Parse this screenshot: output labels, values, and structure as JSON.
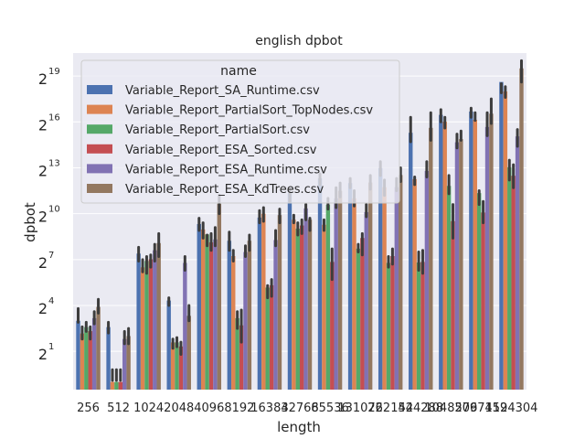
{
  "chart_data": {
    "type": "bar",
    "title": "english dpbot",
    "xlabel": "length",
    "ylabel": "dpbot",
    "yscale": "log2",
    "ylim_log2": [
      -1.5,
      20.5
    ],
    "yticks": [
      {
        "base": "2",
        "exp": "1",
        "value": 1
      },
      {
        "base": "2",
        "exp": "4",
        "value": 4
      },
      {
        "base": "2",
        "exp": "7",
        "value": 7
      },
      {
        "base": "2",
        "exp": "10",
        "value": 10
      },
      {
        "base": "2",
        "exp": "13",
        "value": 13
      },
      {
        "base": "2",
        "exp": "16",
        "value": 16
      },
      {
        "base": "2",
        "exp": "19",
        "value": 19
      }
    ],
    "categories": [
      "256",
      "512",
      "1024",
      "2048",
      "4096",
      "8192",
      "16384",
      "32768",
      "65536",
      "131072",
      "262144",
      "524288",
      "1048576",
      "2097152",
      "4194304"
    ],
    "category_tick_labels": [
      "256",
      "512",
      "1024",
      "2048",
      "4096",
      "8192",
      "16384",
      "32768",
      "65536",
      "131072",
      "262144",
      "524288",
      "1048576",
      "2097152",
      "4194304"
    ],
    "legend": {
      "title": "name",
      "position": "upper-left"
    },
    "grid": true,
    "series": [
      {
        "name": "Variable_Report_SA_Runtime.csv",
        "color": "#4c72b0",
        "values": [
          8,
          6,
          168,
          20,
          640,
          300,
          860,
          2560,
          5100,
          4100,
          8100,
          40000,
          90000,
          105000,
          400000
        ],
        "ci_log2": [
          [
            2.9,
            3.8
          ],
          [
            2.2,
            2.9
          ],
          [
            6.9,
            7.8
          ],
          [
            4.0,
            4.5
          ],
          [
            8.9,
            9.7
          ],
          [
            7.6,
            8.8
          ],
          [
            9.4,
            10.2
          ],
          [
            10.8,
            11.6
          ],
          [
            11.9,
            12.6
          ],
          [
            11.7,
            12.3
          ],
          [
            12.5,
            13.4
          ],
          [
            14.7,
            16.3
          ],
          [
            16.0,
            16.8
          ],
          [
            16.3,
            16.9
          ],
          [
            17.9,
            18.5
          ]
        ]
      },
      {
        "name": "Variable_Report_PartialSort_TopNodes.csv",
        "color": "#dd8452",
        "values": [
          4.5,
          0.5,
          90,
          3,
          500,
          150,
          1020,
          780,
          620,
          2048,
          3400,
          4900,
          66000,
          72000,
          260000
        ],
        "ci_log2": [
          [
            1.8,
            2.6
          ],
          [
            -0.2,
            -0.9
          ],
          [
            6.2,
            7.0
          ],
          [
            1.2,
            1.8
          ],
          [
            8.4,
            9.4
          ],
          [
            6.9,
            7.6
          ],
          [
            9.5,
            10.4
          ],
          [
            9.4,
            9.9
          ],
          [
            8.9,
            9.6
          ],
          [
            10.5,
            11.5
          ],
          [
            11.2,
            12.2
          ],
          [
            11.9,
            12.4
          ],
          [
            15.6,
            16.3
          ],
          [
            16.1,
            16.6
          ],
          [
            17.6,
            18.3
          ]
        ]
      },
      {
        "name": "Variable_Report_PartialSort.csv",
        "color": "#55a868",
        "values": [
          6,
          0.5,
          120,
          3,
          400,
          9,
          36,
          520,
          1540,
          210,
          110,
          112,
          3600,
          2600,
          8400
        ],
        "ci_log2": [
          [
            2.3,
            2.9
          ],
          [
            -0.2,
            -0.9
          ],
          [
            6.1,
            7.2
          ],
          [
            1.3,
            1.9
          ],
          [
            7.9,
            8.6
          ],
          [
            2.5,
            3.6
          ],
          [
            4.5,
            5.3
          ],
          [
            8.6,
            9.4
          ],
          [
            10.3,
            11.0
          ],
          [
            7.5,
            8.0
          ],
          [
            6.5,
            7.2
          ],
          [
            6.3,
            7.5
          ],
          [
            11.3,
            12.5
          ],
          [
            10.6,
            11.5
          ],
          [
            12.2,
            13.5
          ]
        ]
      },
      {
        "name": "Variable_Report_ESA_Sorted.csv",
        "color": "#c44e52",
        "values": [
          5,
          0.5,
          130,
          2.5,
          280,
          6.5,
          40,
          600,
          115,
          340,
          150,
          115,
          730,
          1080,
          5700
        ],
        "ci_log2": [
          [
            1.8,
            2.6
          ],
          [
            -0.2,
            -0.9
          ],
          [
            6.5,
            7.3
          ],
          [
            0.8,
            1.6
          ],
          [
            7.6,
            8.7
          ],
          [
            1.6,
            3.7
          ],
          [
            4.6,
            5.7
          ],
          [
            8.7,
            9.6
          ],
          [
            5.7,
            7.7
          ],
          [
            7.3,
            8.7
          ],
          [
            6.7,
            7.7
          ],
          [
            6.1,
            7.6
          ],
          [
            8.4,
            10.6
          ],
          [
            9.4,
            10.8
          ],
          [
            11.7,
            13.2
          ]
        ]
      },
      {
        "name": "Variable_Report_ESA_Runtime.csv",
        "color": "#8172b3",
        "values": [
          9,
          3.5,
          195,
          110,
          320,
          180,
          310,
          1300,
          2050,
          1100,
          3400,
          7100,
          26000,
          52000,
          34000
        ],
        "ci_log2": [
          [
            2.8,
            3.6
          ],
          [
            1.5,
            2.3
          ],
          [
            6.9,
            8.0
          ],
          [
            6.3,
            7.2
          ],
          [
            7.9,
            9.1
          ],
          [
            7.2,
            7.9
          ],
          [
            7.9,
            8.9
          ],
          [
            9.6,
            10.6
          ],
          [
            10.4,
            11.7
          ],
          [
            9.8,
            10.6
          ],
          [
            11.5,
            12.3
          ],
          [
            12.4,
            13.4
          ],
          [
            14.3,
            15.2
          ],
          [
            15.1,
            16.6
          ],
          [
            14.4,
            15.5
          ]
        ]
      },
      {
        "name": "Variable_Report_ESA_KdTrees.csv",
        "color": "#937860",
        "values": [
          15,
          4,
          270,
          10,
          1600,
          300,
          960,
          780,
          2880,
          4200,
          5900,
          50000,
          30000,
          95000,
          740000
        ],
        "ci_log2": [
          [
            3.5,
            4.4
          ],
          [
            1.5,
            2.5
          ],
          [
            7.2,
            8.7
          ],
          [
            3.0,
            4.0
          ],
          [
            10.0,
            11.2
          ],
          [
            7.6,
            8.6
          ],
          [
            9.4,
            10.3
          ],
          [
            8.9,
            9.7
          ],
          [
            11.1,
            12.0
          ],
          [
            11.6,
            12.5
          ],
          [
            12.1,
            13.0
          ],
          [
            14.8,
            16.6
          ],
          [
            14.8,
            15.4
          ],
          [
            15.9,
            17.5
          ],
          [
            18.6,
            20.0
          ]
        ]
      }
    ]
  }
}
